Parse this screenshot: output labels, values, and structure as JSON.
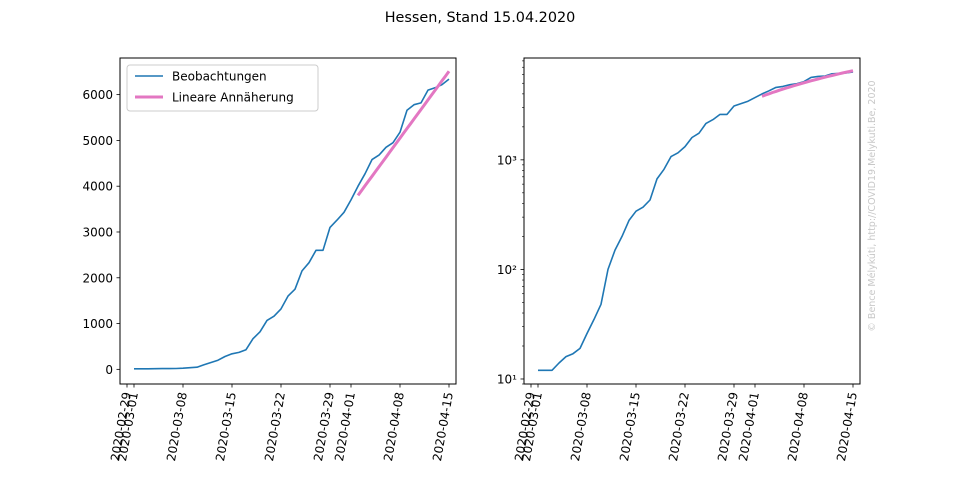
{
  "figure": {
    "title": "Hessen, Stand 15.04.2020",
    "watermark": "© Bence Mélykúti, http://COVID19.Melykuti.Be, 2020"
  },
  "colors": {
    "observations": "#1f77b4",
    "fit": "#e377c2",
    "axes": "#000000"
  },
  "chart_data": [
    {
      "type": "line",
      "panel": "left",
      "yscale": "linear",
      "xlim": [
        "2020-02-28",
        "2020-04-16"
      ],
      "ylim": [
        -320,
        6800
      ],
      "xticks": [
        "2020-02-29",
        "2020-03-01",
        "2020-03-08",
        "2020-03-15",
        "2020-03-22",
        "2020-03-29",
        "2020-04-01",
        "2020-04-08",
        "2020-04-15"
      ],
      "yticks": [
        0,
        1000,
        2000,
        3000,
        4000,
        5000,
        6000
      ],
      "ytick_labels": [
        "0",
        "1000",
        "2000",
        "3000",
        "4000",
        "5000",
        "6000"
      ],
      "legend": {
        "position": "upper-left",
        "entries": [
          "Beobachtungen",
          "Lineare Annäherung"
        ]
      },
      "grid": false
    },
    {
      "type": "line",
      "panel": "right",
      "yscale": "log",
      "xlim": [
        "2020-02-28",
        "2020-04-16"
      ],
      "ylim": [
        9,
        8500
      ],
      "xticks": [
        "2020-02-29",
        "2020-03-01",
        "2020-03-08",
        "2020-03-15",
        "2020-03-22",
        "2020-03-29",
        "2020-04-01",
        "2020-04-08",
        "2020-04-15"
      ],
      "yticks": [
        10,
        100,
        1000
      ],
      "ytick_labels": [
        "10¹",
        "10²",
        "10³"
      ],
      "grid": false
    }
  ],
  "series": [
    {
      "name": "Beobachtungen",
      "dates": [
        "2020-03-01",
        "2020-03-03",
        "2020-03-04",
        "2020-03-05",
        "2020-03-06",
        "2020-03-07",
        "2020-03-08",
        "2020-03-09",
        "2020-03-10",
        "2020-03-11",
        "2020-03-12",
        "2020-03-13",
        "2020-03-14",
        "2020-03-15",
        "2020-03-16",
        "2020-03-17",
        "2020-03-18",
        "2020-03-19",
        "2020-03-20",
        "2020-03-21",
        "2020-03-22",
        "2020-03-23",
        "2020-03-24",
        "2020-03-25",
        "2020-03-26",
        "2020-03-27",
        "2020-03-28",
        "2020-03-29",
        "2020-03-30",
        "2020-03-31",
        "2020-04-01",
        "2020-04-02",
        "2020-04-03",
        "2020-04-04",
        "2020-04-05",
        "2020-04-06",
        "2020-04-07",
        "2020-04-08",
        "2020-04-09",
        "2020-04-10",
        "2020-04-11",
        "2020-04-12",
        "2020-04-13",
        "2020-04-14",
        "2020-04-15"
      ],
      "values": [
        12,
        12,
        14,
        16,
        17,
        19,
        26,
        35,
        48,
        100,
        150,
        200,
        280,
        340,
        370,
        430,
        670,
        820,
        1070,
        1160,
        1320,
        1600,
        1750,
        2150,
        2330,
        2600,
        2600,
        3100,
        3260,
        3430,
        3700,
        4000,
        4270,
        4580,
        4680,
        4850,
        4950,
        5180,
        5660,
        5780,
        5820,
        6100,
        6150,
        6220,
        6340
      ]
    },
    {
      "name": "Lineare Annäherung",
      "dates": [
        "2020-04-02",
        "2020-04-15"
      ],
      "values": [
        3800,
        6510
      ]
    }
  ]
}
